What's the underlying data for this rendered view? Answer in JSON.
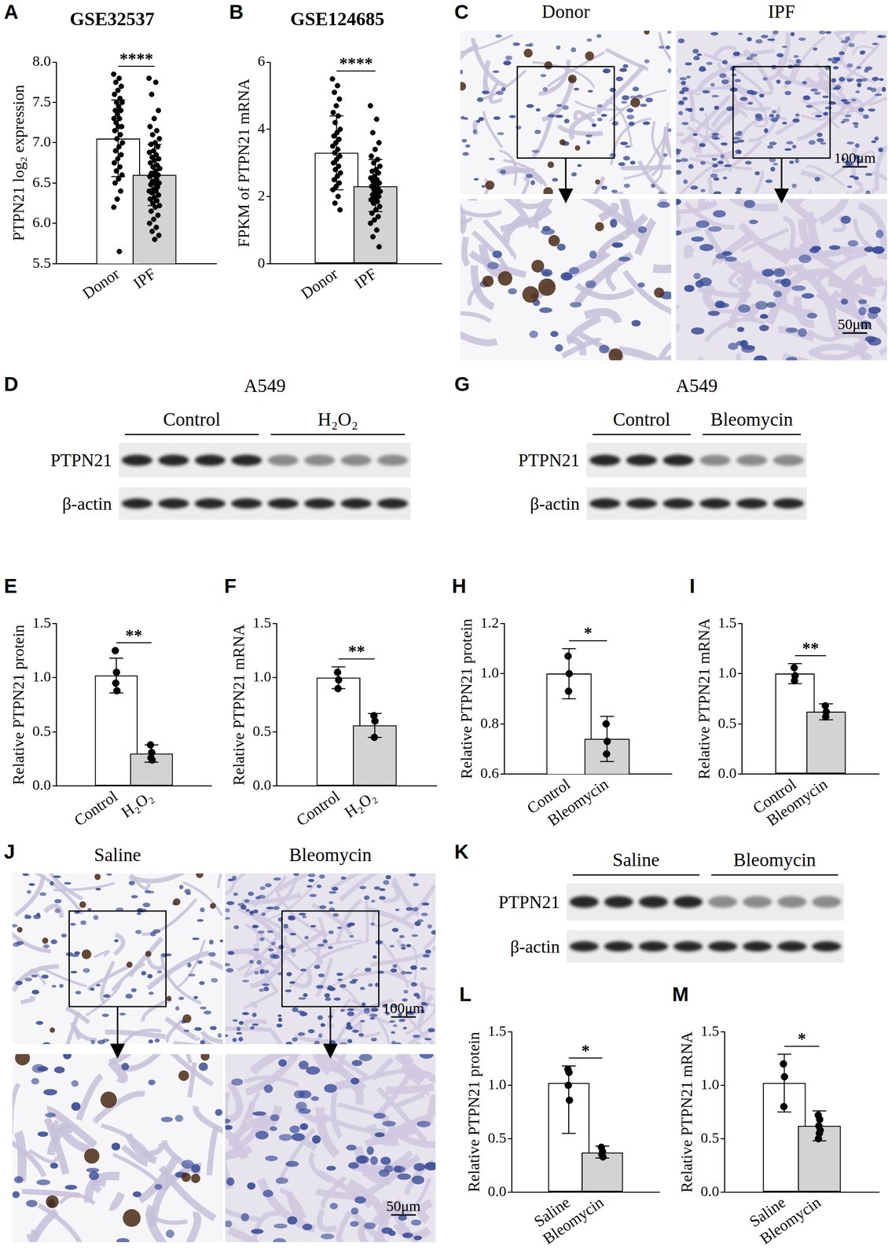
{
  "chart_data": [
    {
      "panel": "A",
      "type": "bar",
      "title": "GSE32537",
      "y_label": "PTPN21 log₂ expression",
      "categories": [
        "Donor",
        "IPF"
      ],
      "values": [
        7.05,
        6.6
      ],
      "error_bars": [
        [
          6.58,
          7.53
        ],
        [
          6.22,
          6.98
        ]
      ],
      "points": [
        [
          7.85,
          7.8,
          7.75,
          7.7,
          7.65,
          7.6,
          7.55,
          7.5,
          7.5,
          7.45,
          7.4,
          7.4,
          7.35,
          7.3,
          7.3,
          7.25,
          7.2,
          7.2,
          7.15,
          7.1,
          7.05,
          7.0,
          6.95,
          6.9,
          6.85,
          6.8,
          6.75,
          6.7,
          6.65,
          6.6,
          6.55,
          6.5,
          6.4,
          6.3,
          6.2,
          5.65
        ],
        [
          7.8,
          7.75,
          7.6,
          7.4,
          7.3,
          7.2,
          7.15,
          7.1,
          7.05,
          7.0,
          6.98,
          6.95,
          6.9,
          6.88,
          6.85,
          6.82,
          6.8,
          6.78,
          6.75,
          6.72,
          6.7,
          6.68,
          6.65,
          6.62,
          6.6,
          6.6,
          6.58,
          6.55,
          6.52,
          6.5,
          6.5,
          6.48,
          6.45,
          6.42,
          6.4,
          6.4,
          6.38,
          6.35,
          6.32,
          6.3,
          6.28,
          6.25,
          6.22,
          6.2,
          6.15,
          6.1,
          6.05,
          6.0,
          5.95,
          5.9,
          5.85,
          5.8
        ]
      ],
      "colors": [
        "#ffffff",
        "#d3d3d3"
      ],
      "ylim": [
        5.5,
        8.0
      ],
      "yticks": [
        5.5,
        {
          "value": 6,
          "label": "6.0"
        },
        6.5,
        {
          "value": 7,
          "label": "7.0"
        },
        7.5,
        {
          "value": 8,
          "label": "8.0"
        }
      ],
      "annotation": "****"
    },
    {
      "panel": "B",
      "type": "bar",
      "title": "GSE124685",
      "y_label": "FPKM of PTPN21 mRNA",
      "categories": [
        "Donor",
        "IPF"
      ],
      "values": [
        3.3,
        2.3
      ],
      "error_bars": [
        [
          2.2,
          4.4
        ],
        [
          1.55,
          3.1
        ]
      ],
      "points": [
        [
          5.5,
          5.3,
          5.1,
          4.9,
          4.7,
          4.5,
          4.4,
          4.2,
          4.0,
          3.9,
          3.8,
          3.7,
          3.6,
          3.5,
          3.4,
          3.3,
          3.2,
          3.1,
          3.0,
          2.9,
          2.8,
          2.7,
          2.6,
          2.5,
          2.4,
          2.3,
          2.2,
          2.0,
          1.8,
          1.6
        ],
        [
          4.7,
          4.3,
          3.9,
          3.6,
          3.4,
          3.2,
          3.1,
          3.0,
          2.9,
          2.8,
          2.75,
          2.7,
          2.6,
          2.55,
          2.5,
          2.45,
          2.4,
          2.35,
          2.3,
          2.25,
          2.2,
          2.15,
          2.1,
          2.05,
          2.0,
          1.95,
          1.9,
          1.85,
          1.8,
          1.7,
          1.6,
          1.5,
          1.4,
          1.3,
          1.2,
          1.0,
          0.8,
          0.5
        ]
      ],
      "colors": [
        "#ffffff",
        "#d3d3d3"
      ],
      "ylim": [
        0,
        6
      ],
      "yticks": [
        0,
        2,
        4,
        6
      ],
      "annotation": "****"
    },
    {
      "panel": "E",
      "type": "bar",
      "y_label": "Relative PTPN21 protein",
      "categories": [
        "Control",
        "H₂O₂"
      ],
      "values": [
        1.02,
        0.3
      ],
      "error_bars": [
        [
          0.86,
          1.18
        ],
        [
          0.22,
          0.38
        ]
      ],
      "points": [
        [
          1.25,
          1.05,
          0.95,
          0.88
        ],
        [
          0.38,
          0.31,
          0.26,
          0.24
        ]
      ],
      "colors": [
        "#ffffff",
        "#d3d3d3"
      ],
      "ylim": [
        0,
        1.5
      ],
      "yticks": [
        {
          "value": 0,
          "label": "0.0"
        },
        0.5,
        {
          "value": 1,
          "label": "1.0"
        },
        1.5
      ],
      "annotation": "**"
    },
    {
      "panel": "F",
      "type": "bar",
      "y_label": "Relative PTPN21 mRNA",
      "categories": [
        "Control",
        "H₂O₂"
      ],
      "values": [
        1.0,
        0.56
      ],
      "error_bars": [
        [
          0.9,
          1.1
        ],
        [
          0.45,
          0.67
        ]
      ],
      "points": [
        [
          1.05,
          0.98,
          0.9
        ],
        [
          0.65,
          0.6,
          0.45
        ]
      ],
      "colors": [
        "#ffffff",
        "#d3d3d3"
      ],
      "ylim": [
        0,
        1.5
      ],
      "yticks": [
        {
          "value": 0,
          "label": "0.0"
        },
        0.5,
        {
          "value": 1,
          "label": "1.0"
        },
        1.5
      ],
      "annotation": "**"
    },
    {
      "panel": "H",
      "type": "bar",
      "y_label": "Relative PTPN21 protein",
      "categories": [
        "Control",
        "Bleomycin"
      ],
      "values": [
        1.0,
        0.74
      ],
      "error_bars": [
        [
          0.9,
          1.1
        ],
        [
          0.65,
          0.83
        ]
      ],
      "points": [
        [
          1.07,
          1.0,
          0.93
        ],
        [
          0.8,
          0.73,
          0.68
        ]
      ],
      "colors": [
        "#ffffff",
        "#d3d3d3"
      ],
      "ylim": [
        0.6,
        1.2
      ],
      "yticks": [
        0.6,
        0.8,
        {
          "value": 1,
          "label": "1.0"
        },
        1.2
      ],
      "annotation": "*"
    },
    {
      "panel": "I",
      "type": "bar",
      "y_label": "Relative PTPN21 mRNA",
      "categories": [
        "Control",
        "Bleomycin"
      ],
      "values": [
        1.0,
        0.62
      ],
      "error_bars": [
        [
          0.9,
          1.1
        ],
        [
          0.54,
          0.7
        ]
      ],
      "points": [
        [
          1.06,
          0.98,
          0.93
        ],
        [
          0.68,
          0.62,
          0.57
        ]
      ],
      "colors": [
        "#ffffff",
        "#d3d3d3"
      ],
      "ylim": [
        0,
        1.5
      ],
      "yticks": [
        {
          "value": 0,
          "label": "0.0"
        },
        0.5,
        {
          "value": 1,
          "label": "1.0"
        },
        1.5
      ],
      "annotation": "**"
    },
    {
      "panel": "L",
      "type": "bar",
      "y_label": "Relative PTPN21 protein",
      "categories": [
        "Saline",
        "Bleomycin"
      ],
      "values": [
        1.02,
        0.37
      ],
      "error_bars": [
        [
          0.55,
          1.18
        ],
        [
          0.32,
          0.43
        ]
      ],
      "points": [
        [
          1.15,
          1.12,
          1.0,
          0.86
        ],
        [
          0.42,
          0.38,
          0.35,
          0.33
        ]
      ],
      "colors": [
        "#ffffff",
        "#d3d3d3"
      ],
      "ylim": [
        0,
        1.5
      ],
      "yticks": [
        {
          "value": 0,
          "label": "0.0"
        },
        0.5,
        {
          "value": 1,
          "label": "1.0"
        },
        1.5
      ],
      "annotation": "*"
    },
    {
      "panel": "M",
      "type": "bar",
      "y_label": "Relative PTPN21 mRNA",
      "categories": [
        "Saline",
        "Bleomycin"
      ],
      "values": [
        1.02,
        0.62
      ],
      "error_bars": [
        [
          0.75,
          1.29
        ],
        [
          0.48,
          0.76
        ]
      ],
      "points": [
        [
          1.2,
          1.08,
          0.8
        ],
        [
          0.72,
          0.68,
          0.62,
          0.58,
          0.55,
          0.5
        ]
      ],
      "colors": [
        "#ffffff",
        "#d3d3d3"
      ],
      "ylim": [
        0,
        1.5
      ],
      "yticks": [
        {
          "value": 0,
          "label": "0.0"
        },
        0.5,
        {
          "value": 1,
          "label": "1.0"
        },
        1.5
      ],
      "annotation": "*"
    }
  ],
  "images": [
    {
      "panel": "C",
      "type": "histology",
      "columns": [
        {
          "label": "Donor"
        },
        {
          "label": "IPF",
          "scale_bars": [
            "100μm",
            "50μm"
          ]
        }
      ]
    },
    {
      "panel": "D",
      "type": "blot",
      "title": "A549",
      "groups": [
        {
          "label": "Control",
          "lanes": 4
        },
        {
          "label": "H₂O₂",
          "lanes": 4
        }
      ],
      "rows": [
        "PTPN21",
        "β-actin"
      ]
    },
    {
      "panel": "G",
      "type": "blot",
      "title": "A549",
      "groups": [
        {
          "label": "Control",
          "lanes": 3
        },
        {
          "label": "Bleomycin",
          "lanes": 3
        }
      ],
      "rows": [
        "PTPN21",
        "β-actin"
      ]
    },
    {
      "panel": "J",
      "type": "histology",
      "columns": [
        {
          "label": "Saline"
        },
        {
          "label": "Bleomycin",
          "scale_bars": [
            "100μm",
            "50μm"
          ]
        }
      ]
    },
    {
      "panel": "K",
      "type": "blot",
      "groups": [
        {
          "label": "Saline",
          "lanes": 4
        },
        {
          "label": "Bleomycin",
          "lanes": 4
        }
      ],
      "rows": [
        "PTPN21",
        "β-actin"
      ]
    }
  ]
}
